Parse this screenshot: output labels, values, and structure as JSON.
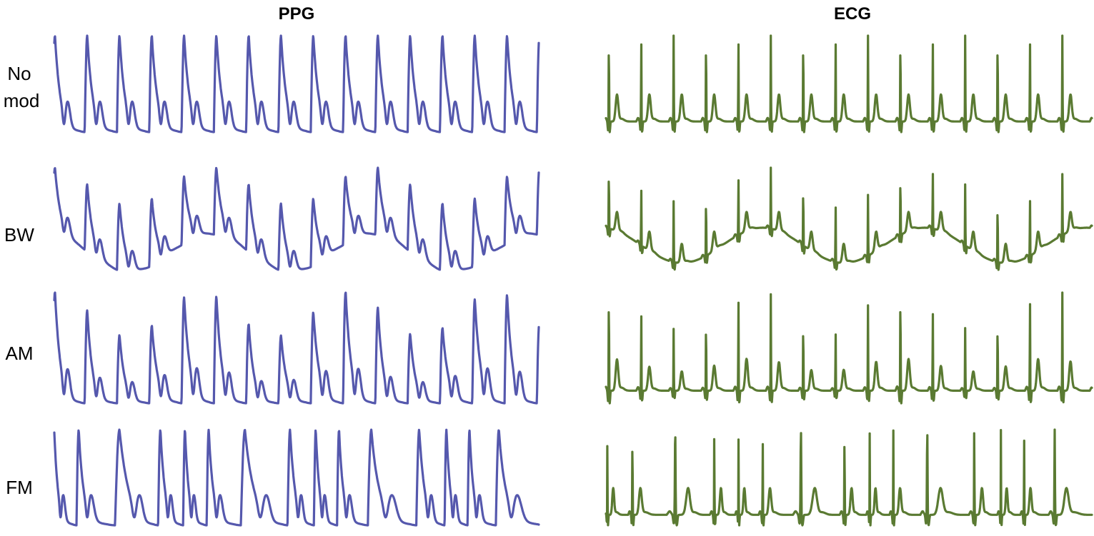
{
  "chart_data": {
    "type": "line",
    "columns": [
      {
        "key": "ppg",
        "title": "PPG",
        "color": "#5558ad"
      },
      {
        "key": "ecg",
        "title": "ECG",
        "color": "#5a7a32"
      }
    ],
    "rows": [
      {
        "key": "none",
        "label_lines": [
          "No",
          "mod"
        ]
      },
      {
        "key": "bw",
        "label_lines": [
          "BW"
        ]
      },
      {
        "key": "am",
        "label_lines": [
          "AM"
        ]
      },
      {
        "key": "fm",
        "label_lines": [
          "FM"
        ]
      }
    ],
    "beats_per_trace": 15,
    "grid": false,
    "legend": "none"
  }
}
